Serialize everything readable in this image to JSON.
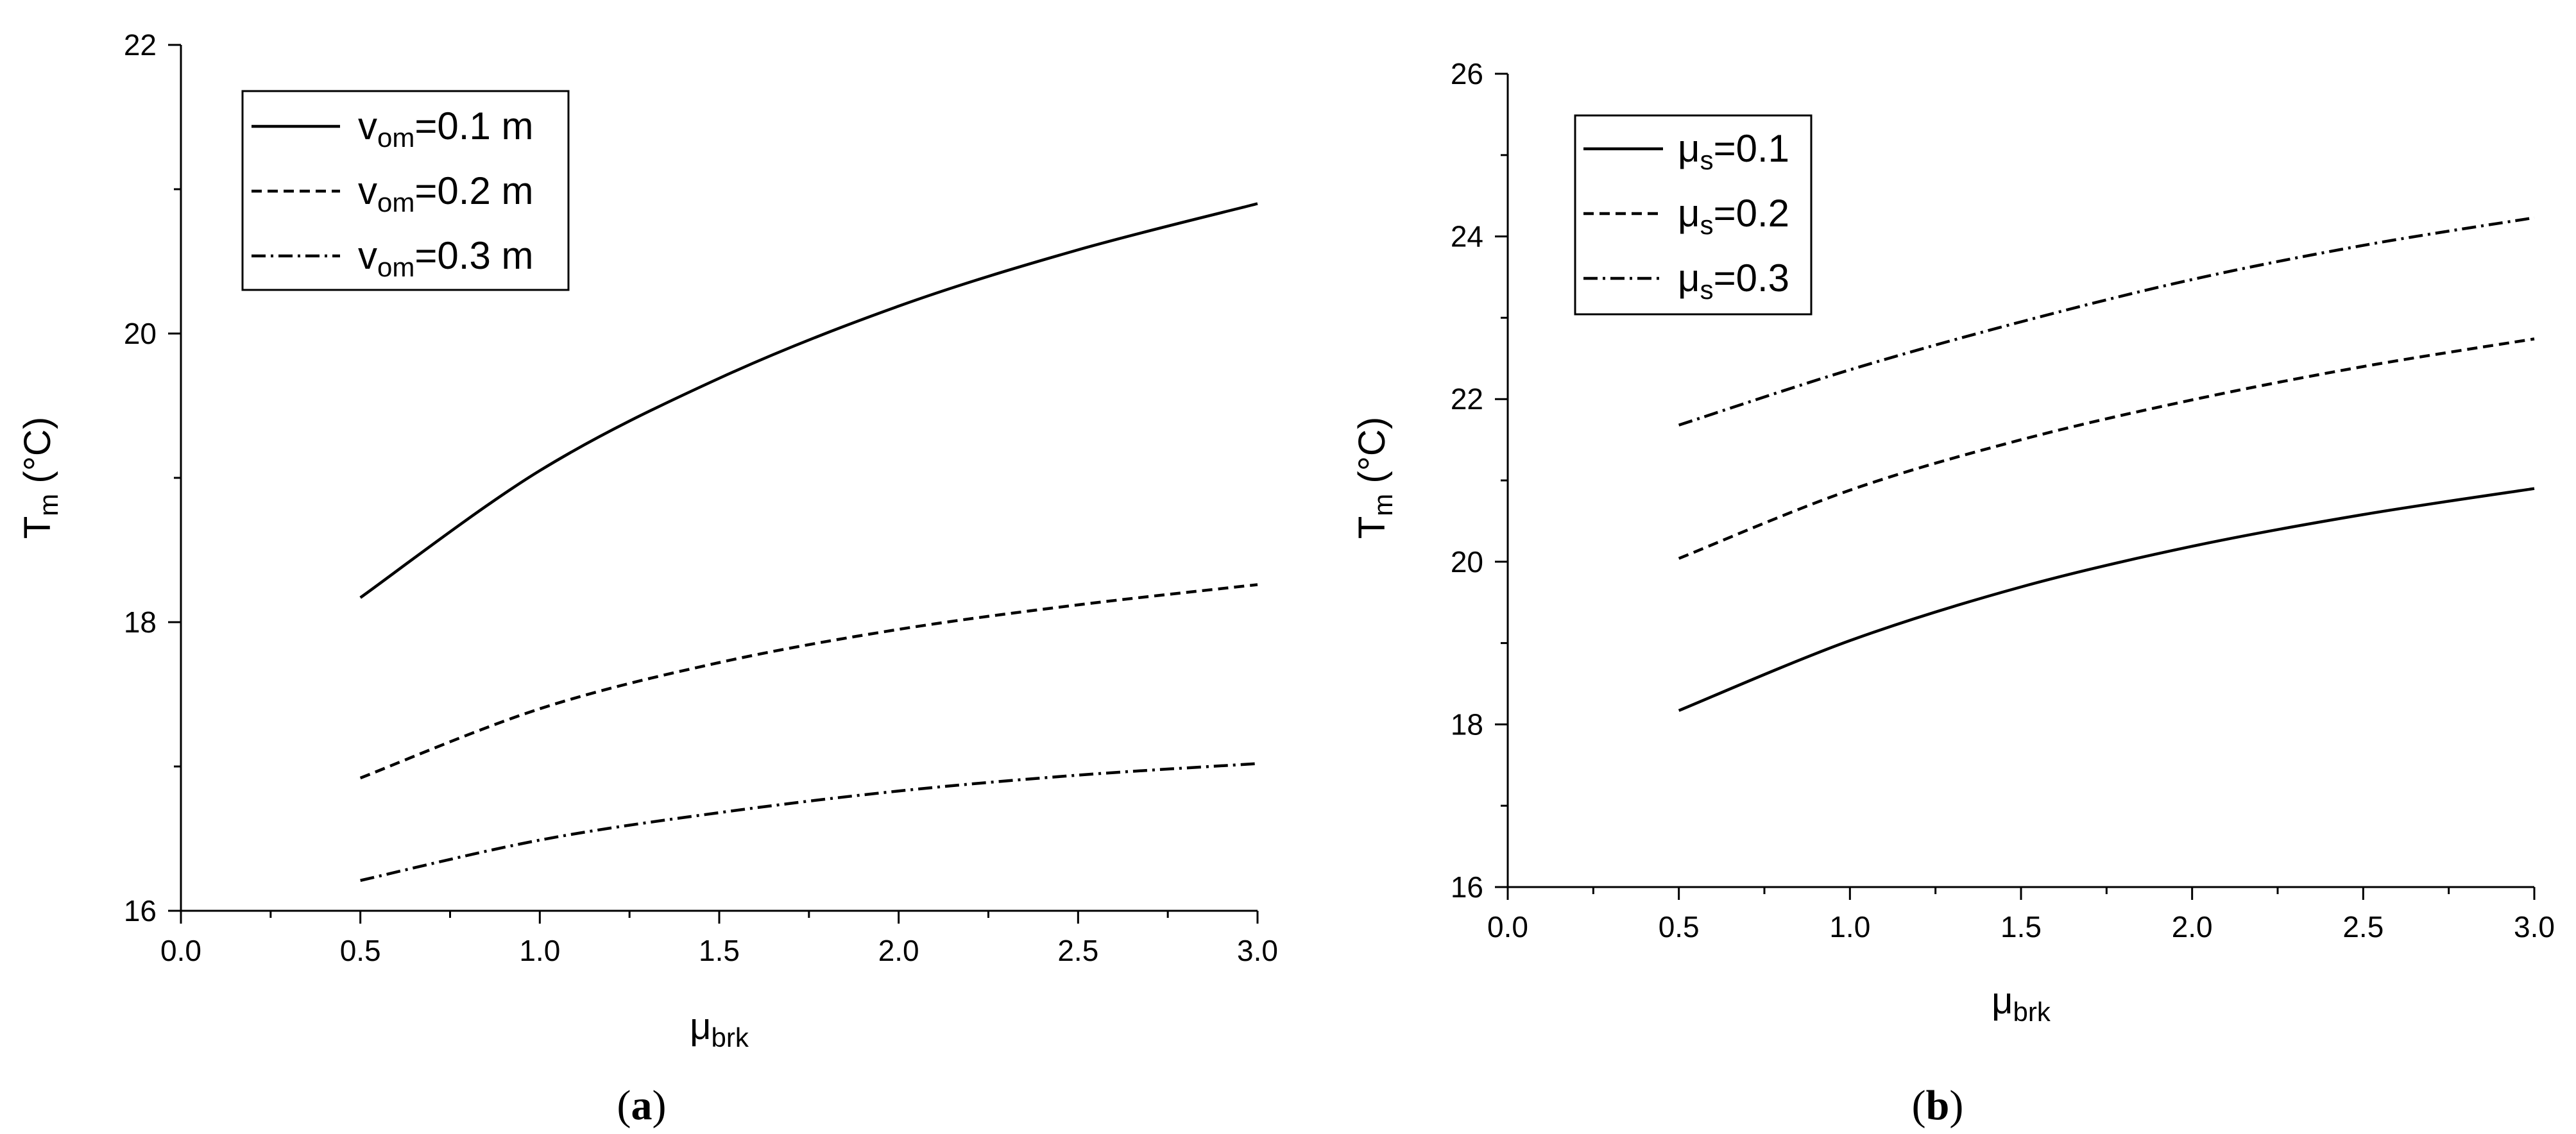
{
  "chart_data": [
    {
      "type": "line",
      "panel_label": "a",
      "xlabel": "μ",
      "xlabel_sub": "brk",
      "ylabel": "T",
      "ylabel_sub": "m",
      "ylabel_unit": " (°C)",
      "xlim": [
        0.0,
        3.0
      ],
      "ylim": [
        16,
        22
      ],
      "xticks": [
        "0.0",
        "0.5",
        "1.0",
        "1.5",
        "2.0",
        "2.5",
        "3.0"
      ],
      "yticks": [
        "16",
        "18",
        "20",
        "22"
      ],
      "grid": false,
      "legend_position": "top-left",
      "x": [
        0.5,
        1.0,
        1.5,
        2.0,
        2.5,
        3.0
      ],
      "series": [
        {
          "name": "v",
          "name_sub": "om",
          "name_suffix": "=0.1 m",
          "dash": "solid",
          "values": [
            18.17,
            19.05,
            19.69,
            20.19,
            20.58,
            20.9
          ]
        },
        {
          "name": "v",
          "name_sub": "om",
          "name_suffix": "=0.2 m",
          "dash": "dashed",
          "values": [
            16.92,
            17.4,
            17.72,
            17.95,
            18.12,
            18.26
          ]
        },
        {
          "name": "v",
          "name_sub": "om",
          "name_suffix": "=0.3 m",
          "dash": "dashdot",
          "values": [
            16.21,
            16.49,
            16.68,
            16.83,
            16.94,
            17.02
          ]
        }
      ]
    },
    {
      "type": "line",
      "panel_label": "b",
      "xlabel": "μ",
      "xlabel_sub": "brk",
      "ylabel": "T",
      "ylabel_sub": "m",
      "ylabel_unit": " (°C)",
      "xlim": [
        0.0,
        3.0
      ],
      "ylim": [
        16,
        26
      ],
      "xticks": [
        "0.0",
        "0.5",
        "1.0",
        "1.5",
        "2.0",
        "2.5",
        "3.0"
      ],
      "yticks": [
        "16",
        "18",
        "20",
        "22",
        "24",
        "26"
      ],
      "grid": false,
      "legend_position": "top-left",
      "x": [
        0.5,
        1.0,
        1.5,
        2.0,
        2.5,
        3.0
      ],
      "series": [
        {
          "name": "μ",
          "name_sub": "s",
          "name_suffix": "=0.1",
          "dash": "solid",
          "values": [
            18.17,
            19.03,
            19.69,
            20.19,
            20.58,
            20.9
          ]
        },
        {
          "name": "μ",
          "name_sub": "s",
          "name_suffix": "=0.2",
          "dash": "dashed",
          "values": [
            20.04,
            20.88,
            21.5,
            21.99,
            22.4,
            22.74
          ]
        },
        {
          "name": "μ",
          "name_sub": "s",
          "name_suffix": "=0.3",
          "dash": "dashdot",
          "values": [
            21.68,
            22.36,
            22.95,
            23.47,
            23.89,
            24.23
          ]
        }
      ]
    }
  ]
}
